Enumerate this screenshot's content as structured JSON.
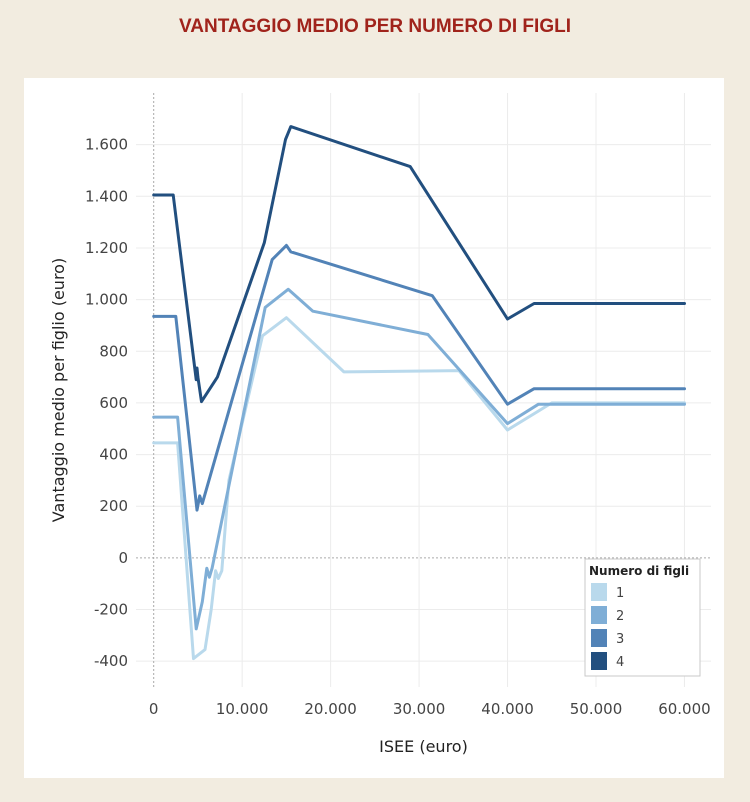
{
  "title": "VANTAGGIO MEDIO PER NUMERO DI FIGLI",
  "chart_data": {
    "type": "line",
    "xlabel": "ISEE (euro)",
    "ylabel": "Vantaggio medio per figlio (euro)",
    "xlim": [
      -2000,
      63000
    ],
    "ylim": [
      -500,
      1800
    ],
    "xticks": [
      0,
      10000,
      20000,
      30000,
      40000,
      50000,
      60000
    ],
    "xtick_labels": [
      "0",
      "10.000",
      "20.000",
      "30.000",
      "40.000",
      "50.000",
      "60.000"
    ],
    "yticks": [
      -400,
      -200,
      0,
      200,
      400,
      600,
      800,
      1000,
      1200,
      1400,
      1600
    ],
    "ytick_labels": [
      "-400",
      "-200",
      "0",
      "200",
      "400",
      "600",
      "800",
      "1.000",
      "1.200",
      "1.400",
      "1.600"
    ],
    "grid": true,
    "legend": {
      "title": "Numero di figli",
      "placement": "bottom-right"
    },
    "series": [
      {
        "name": "1",
        "color": "#b9d9ec",
        "x": [
          0,
          2700,
          4500,
          5800,
          6500,
          7000,
          7300,
          7700,
          8500,
          12300,
          15000,
          21500,
          34500,
          40000,
          45000,
          50000,
          60000
        ],
        "y": [
          445,
          445,
          -390,
          -355,
          -200,
          -50,
          -80,
          -50,
          300,
          860,
          930,
          720,
          725,
          495,
          600,
          600,
          600
        ]
      },
      {
        "name": "2",
        "color": "#7faed6",
        "x": [
          0,
          2700,
          4800,
          5500,
          6000,
          6300,
          6600,
          12600,
          15200,
          18000,
          31000,
          40000,
          43500,
          50000,
          60000
        ],
        "y": [
          545,
          545,
          -275,
          -170,
          -40,
          -75,
          -40,
          970,
          1040,
          955,
          865,
          520,
          595,
          595,
          595
        ]
      },
      {
        "name": "3",
        "color": "#5283b7",
        "x": [
          0,
          2500,
          4900,
          5200,
          5500,
          13400,
          15000,
          15500,
          31500,
          40000,
          43000,
          50000,
          60000
        ],
        "y": [
          935,
          935,
          185,
          240,
          210,
          1155,
          1210,
          1185,
          1015,
          595,
          655,
          655,
          655
        ]
      },
      {
        "name": "4",
        "color": "#224f7f",
        "x": [
          0,
          2200,
          4800,
          4900,
          5000,
          5400,
          7200,
          12500,
          14900,
          15500,
          29000,
          40000,
          43000,
          50000,
          60000
        ],
        "y": [
          1405,
          1405,
          690,
          735,
          700,
          605,
          700,
          1220,
          1620,
          1670,
          1515,
          925,
          985,
          985,
          985
        ]
      }
    ]
  }
}
